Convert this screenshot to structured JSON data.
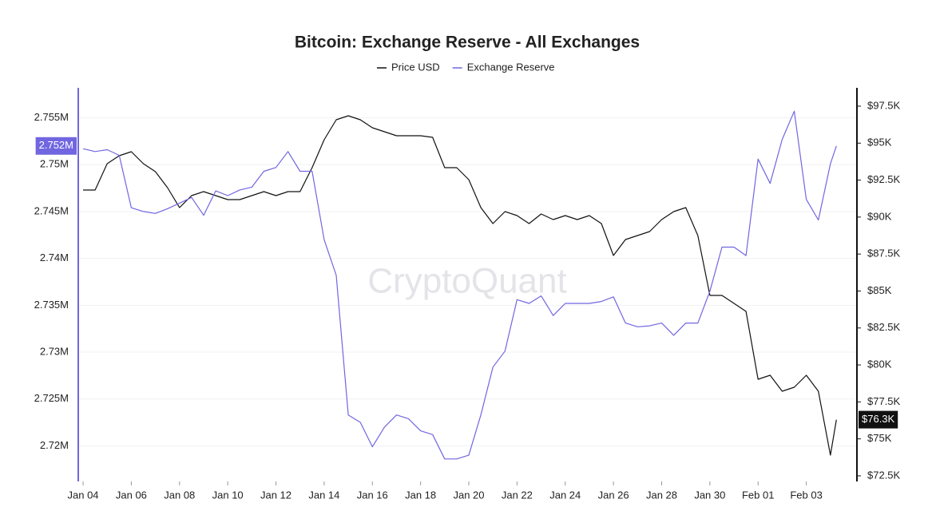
{
  "chart_data": {
    "type": "line",
    "title": "Bitcoin: Exchange Reserve - All Exchanges",
    "watermark": "CryptoQuant",
    "x": [
      0,
      0.5,
      1,
      1.5,
      2,
      2.5,
      3,
      3.5,
      4,
      4.5,
      5,
      5.5,
      6,
      6.5,
      7,
      7.5,
      8,
      8.5,
      9,
      9.5,
      10,
      10.5,
      11,
      11.5,
      12,
      12.5,
      13,
      13.5,
      14,
      14.5,
      15,
      15.5,
      16,
      16.5,
      17,
      17.5,
      18,
      18.5,
      19,
      19.5,
      20,
      20.5,
      21,
      21.5,
      22,
      22.5,
      23,
      23.5,
      24,
      24.5,
      25,
      25.5,
      26,
      26.5,
      27,
      27.5,
      28,
      28.5,
      29,
      29.5,
      30,
      30.5,
      31,
      31.25
    ],
    "xlim": [
      -0.2,
      32.1
    ],
    "xticks": [
      {
        "value": 0,
        "label": "Jan 04"
      },
      {
        "value": 2,
        "label": "Jan 06"
      },
      {
        "value": 4,
        "label": "Jan 08"
      },
      {
        "value": 6,
        "label": "Jan 10"
      },
      {
        "value": 8,
        "label": "Jan 12"
      },
      {
        "value": 10,
        "label": "Jan 14"
      },
      {
        "value": 12,
        "label": "Jan 16"
      },
      {
        "value": 14,
        "label": "Jan 18"
      },
      {
        "value": 16,
        "label": "Jan 20"
      },
      {
        "value": 18,
        "label": "Jan 22"
      },
      {
        "value": 20,
        "label": "Jan 24"
      },
      {
        "value": 22,
        "label": "Jan 26"
      },
      {
        "value": 24,
        "label": "Jan 28"
      },
      {
        "value": 26,
        "label": "Jan 30"
      },
      {
        "value": 28,
        "label": "Feb 01"
      },
      {
        "value": 30,
        "label": "Feb 03"
      }
    ],
    "ylim": [
      2.7162,
      2.7582
    ],
    "yticks": [
      {
        "value": 2.72,
        "label": "2.72M"
      },
      {
        "value": 2.725,
        "label": "2.725M"
      },
      {
        "value": 2.73,
        "label": "2.73M"
      },
      {
        "value": 2.735,
        "label": "2.735M"
      },
      {
        "value": 2.74,
        "label": "2.74M"
      },
      {
        "value": 2.745,
        "label": "2.745M"
      },
      {
        "value": 2.75,
        "label": "2.75M"
      },
      {
        "value": 2.755,
        "label": "2.755M"
      }
    ],
    "y2lim": [
      72.12,
      98.74
    ],
    "y2ticks": [
      {
        "value": 72.5,
        "label": "$72.5K"
      },
      {
        "value": 75,
        "label": "$75K"
      },
      {
        "value": 77.5,
        "label": "$77.5K"
      },
      {
        "value": 80,
        "label": "$80K"
      },
      {
        "value": 82.5,
        "label": "$82.5K"
      },
      {
        "value": 85,
        "label": "$85K"
      },
      {
        "value": 87.5,
        "label": "$87.5K"
      },
      {
        "value": 90,
        "label": "$90K"
      },
      {
        "value": 92.5,
        "label": "$92.5K"
      },
      {
        "value": 95,
        "label": "$95K"
      },
      {
        "value": 97.5,
        "label": "$97.5K"
      }
    ],
    "grid": true,
    "legend": "top",
    "series": [
      {
        "name": "Price USD",
        "color": "#111111",
        "axis": "y2",
        "latest_label": "$76.3K",
        "values": [
          91.83,
          91.83,
          93.61,
          94.15,
          94.42,
          93.61,
          93.07,
          91.99,
          90.64,
          91.45,
          91.72,
          91.45,
          91.18,
          91.18,
          91.45,
          91.72,
          91.45,
          91.72,
          91.72,
          93.34,
          95.23,
          96.58,
          96.85,
          96.58,
          96.04,
          95.77,
          95.5,
          95.5,
          95.5,
          95.39,
          93.34,
          93.34,
          92.53,
          90.64,
          89.56,
          90.37,
          90.1,
          89.56,
          90.21,
          89.83,
          90.1,
          89.83,
          90.1,
          89.56,
          87.4,
          88.48,
          88.75,
          89.02,
          89.83,
          90.37,
          90.64,
          88.75,
          84.7,
          84.7,
          84.16,
          83.62,
          79.03,
          79.3,
          78.22,
          78.49,
          79.3,
          78.22,
          73.9,
          76.3
        ]
      },
      {
        "name": "Exchange Reserve",
        "color": "#7166e0",
        "axis": "y",
        "latest_label": "2.752M",
        "values": [
          2.7517,
          2.7514,
          2.7516,
          2.751,
          2.7454,
          2.745,
          2.7448,
          2.7453,
          2.7459,
          2.7465,
          2.7446,
          2.7472,
          2.7467,
          2.7473,
          2.7476,
          2.7493,
          2.7497,
          2.7514,
          2.7493,
          2.7493,
          2.742,
          2.7382,
          2.7233,
          2.7225,
          2.7199,
          2.722,
          2.7233,
          2.7229,
          2.7216,
          2.7212,
          2.7186,
          2.7186,
          2.719,
          2.7233,
          2.7284,
          2.7301,
          2.7356,
          2.7352,
          2.736,
          2.7339,
          2.7352,
          2.7352,
          2.7352,
          2.7354,
          2.7359,
          2.7331,
          2.7327,
          2.7328,
          2.7331,
          2.7318,
          2.7331,
          2.7331,
          2.7365,
          2.7412,
          2.7412,
          2.7403,
          2.7506,
          2.748,
          2.7527,
          2.7557,
          2.7463,
          2.7441,
          2.7501,
          2.752
        ]
      }
    ]
  }
}
